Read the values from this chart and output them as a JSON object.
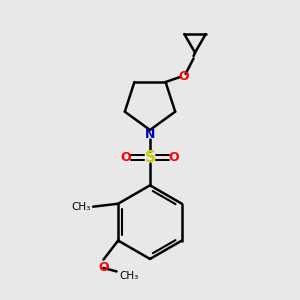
{
  "background_color": "#e8e8e8",
  "bond_color": "#000000",
  "N_color": "#0000cc",
  "O_color": "#ff0000",
  "S_color": "#cccc00",
  "line_width": 1.8,
  "figsize": [
    3.0,
    3.0
  ],
  "dpi": 100,
  "xlim": [
    0,
    10
  ],
  "ylim": [
    0,
    10
  ]
}
